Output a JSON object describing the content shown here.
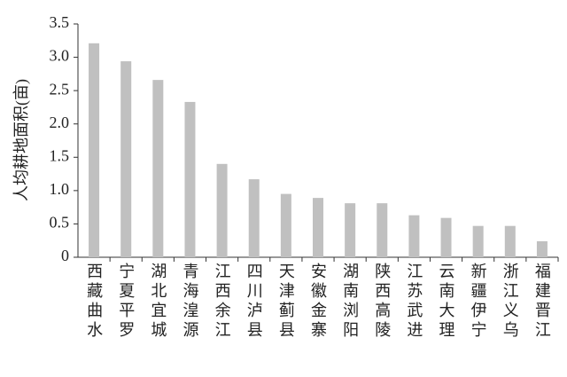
{
  "chart_data": {
    "type": "bar",
    "y_label": "人均耕地面积(亩)",
    "categories": [
      "西藏曲水",
      "宁夏平罗",
      "湖北宜城",
      "青海湟源",
      "江西余江",
      "四川泸县",
      "天津蓟县",
      "安徽金寨",
      "湖南浏阳",
      "陕西高陵",
      "江苏武进",
      "云南大理",
      "新疆伊宁",
      "浙江义乌",
      "福建晋江"
    ],
    "values": [
      3.21,
      2.94,
      2.66,
      2.33,
      1.4,
      1.17,
      0.95,
      0.89,
      0.81,
      0.81,
      0.63,
      0.59,
      0.47,
      0.47,
      0.24
    ],
    "color": "#c0c0c0",
    "ylim": [
      0,
      3.5
    ],
    "yticks": [
      0,
      0.5,
      {
        "value": 1,
        "label": "1.0"
      },
      1.5,
      {
        "value": 2,
        "label": "2.0"
      },
      2.5,
      {
        "value": 3,
        "label": "3.0"
      },
      3.5
    ],
    "grid": false
  }
}
